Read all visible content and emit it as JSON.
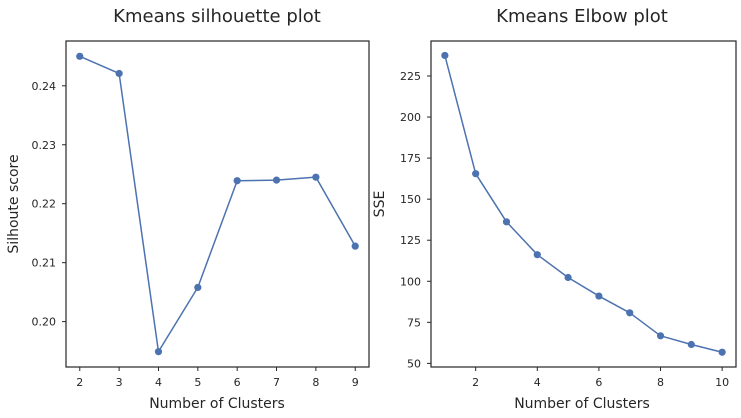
{
  "line_color": "#4c72b0",
  "chart_data": [
    {
      "type": "line",
      "title": "Kmeans silhouette plot",
      "xlabel": "Number of Clusters",
      "ylabel": "Silhoute score",
      "grid": false,
      "x": [
        2,
        3,
        4,
        5,
        6,
        7,
        8,
        9
      ],
      "series": [
        {
          "values": [
            0.245,
            0.2421,
            0.1949,
            0.2058,
            0.2239,
            0.224,
            0.2245,
            0.2128
          ]
        }
      ],
      "xlim": [
        1.65,
        9.35
      ],
      "ylim": [
        0.1923,
        0.2476
      ],
      "xticks": [
        2,
        3,
        4,
        5,
        6,
        7,
        8,
        9
      ],
      "xtick_labels": [
        "2",
        "3",
        "4",
        "5",
        "6",
        "7",
        "8",
        "9"
      ],
      "yticks": [
        0.2,
        0.21,
        0.22,
        0.23,
        0.24
      ],
      "ytick_labels": [
        "0.20",
        "0.21",
        "0.22",
        "0.23",
        "0.24"
      ]
    },
    {
      "type": "line",
      "title": "Kmeans Elbow plot",
      "xlabel": "Number of Clusters",
      "ylabel": "SSE",
      "grid": false,
      "x": [
        1,
        2,
        3,
        4,
        5,
        6,
        7,
        8,
        9,
        10
      ],
      "series": [
        {
          "values": [
            237.5,
            165.5,
            136.2,
            116.2,
            102.3,
            91.0,
            80.8,
            66.8,
            61.5,
            56.8
          ]
        }
      ],
      "xlim": [
        0.55,
        10.45
      ],
      "ylim": [
        47.8,
        246.3
      ],
      "xticks": [
        2,
        4,
        6,
        8,
        10
      ],
      "xtick_labels": [
        "2",
        "4",
        "6",
        "8",
        "10"
      ],
      "yticks": [
        50,
        75,
        100,
        125,
        150,
        175,
        200,
        225
      ],
      "ytick_labels": [
        "50",
        "75",
        "100",
        "125",
        "150",
        "175",
        "200",
        "225"
      ]
    }
  ]
}
